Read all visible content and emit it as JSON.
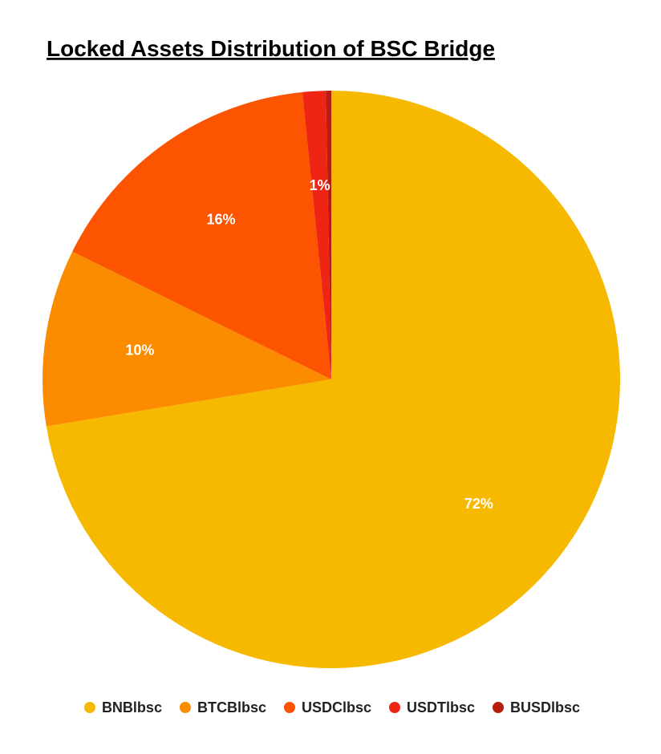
{
  "chart_data": {
    "type": "pie",
    "title": "Locked Assets Distribution of BSC Bridge",
    "categories": [
      "BNBlbsc",
      "BTCBlbsc",
      "USDClbsc",
      "USDTlbsc",
      "BUSDlbsc"
    ],
    "values": [
      72.4,
      9.9,
      16.1,
      1.3,
      0.3
    ],
    "value_labels": [
      "72%",
      "10%",
      "16%",
      "1%",
      null
    ],
    "colors": [
      "#f7b900",
      "#fb8c00",
      "#fc5400",
      "#ee2414",
      "#b71c0c"
    ],
    "legend": "bottom"
  }
}
